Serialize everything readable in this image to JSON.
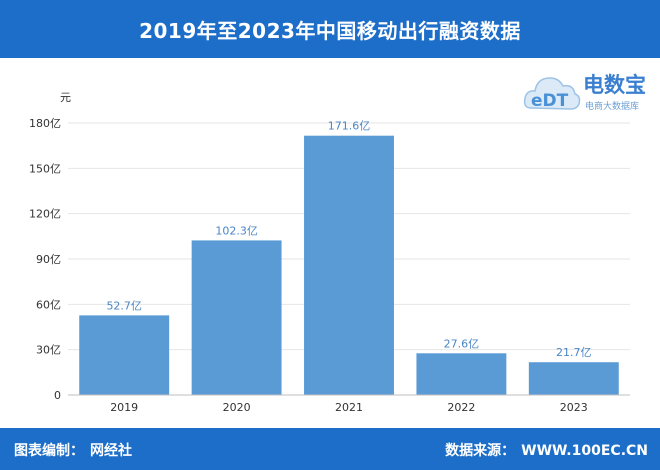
{
  "header": {
    "title": "2019年至2023年中国移动出行融资数据"
  },
  "footer": {
    "author_label": "图表编制：",
    "author_value": "网经社",
    "source_label": "数据来源：",
    "source_value": "WWW.100EC.CN"
  },
  "logo": {
    "name": "电数宝",
    "subtitle": "电商大数据库",
    "mark": "eDT"
  },
  "colors": {
    "header_bg": "#1c6ec8",
    "bar": "#5b9bd5",
    "label": "#4a86c5",
    "grid": "#e6e6e6"
  },
  "chart_data": {
    "type": "bar",
    "ylabel": "元",
    "categories": [
      "2019",
      "2020",
      "2021",
      "2022",
      "2023"
    ],
    "values": [
      52.7,
      102.3,
      171.6,
      27.6,
      21.7
    ],
    "data_labels": [
      "52.7亿",
      "102.3亿",
      "171.6亿",
      "27.6亿",
      "21.7亿"
    ],
    "ylim": [
      0,
      180
    ],
    "yticks": [
      0,
      30,
      60,
      90,
      120,
      150,
      180
    ],
    "ytick_labels": [
      "0",
      "30亿",
      "60亿",
      "90亿",
      "120亿",
      "150亿",
      "180亿"
    ],
    "grid": true
  }
}
